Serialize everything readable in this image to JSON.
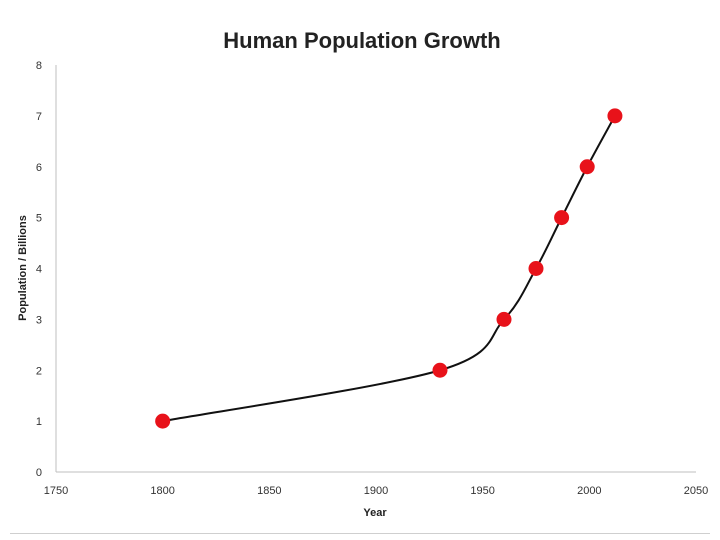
{
  "chart_data": {
    "type": "scatter",
    "title": "Human Population Growth",
    "xlabel": "Year",
    "ylabel": "Population / Billions",
    "xlim": [
      1750,
      2050
    ],
    "ylim": [
      0,
      8
    ],
    "xticks": [
      1750,
      1800,
      1850,
      1900,
      1950,
      2000,
      2050
    ],
    "yticks": [
      0,
      1,
      2,
      3,
      4,
      5,
      6,
      7,
      8
    ],
    "grid": false,
    "trendline": "smooth",
    "points": [
      {
        "x": 1800,
        "y": 1
      },
      {
        "x": 1930,
        "y": 2
      },
      {
        "x": 1960,
        "y": 3
      },
      {
        "x": 1975,
        "y": 4
      },
      {
        "x": 1987,
        "y": 5
      },
      {
        "x": 1999,
        "y": 6
      },
      {
        "x": 2012,
        "y": 7
      }
    ],
    "colors": {
      "marker": "#e8121a",
      "trend": "#111111",
      "axis": "#bfbfbf"
    }
  }
}
